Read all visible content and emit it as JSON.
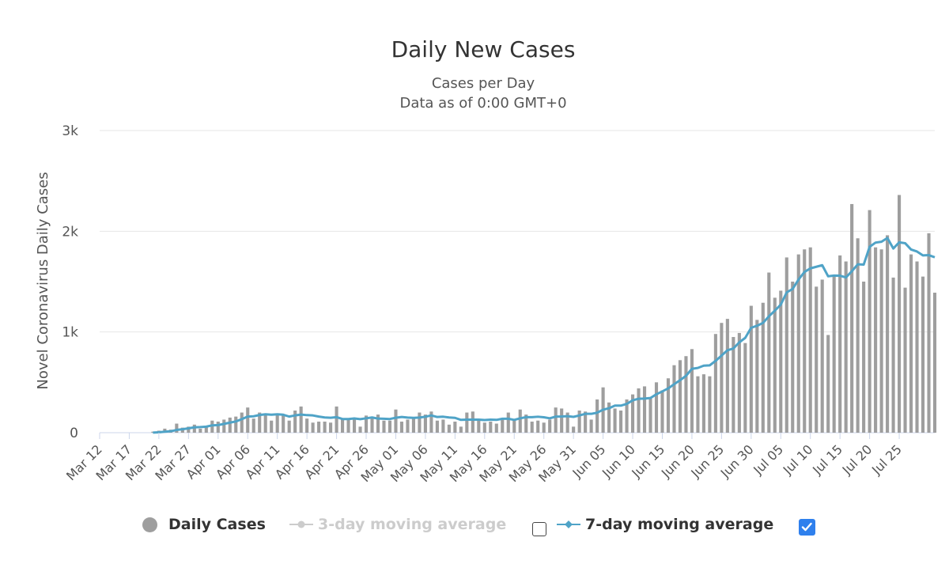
{
  "title": "Daily New Cases",
  "subtitle_line1": "Cases per Day",
  "subtitle_line2": "Data as of 0:00 GMT+0",
  "colors": {
    "bars": "#9e9e9e",
    "line7": "#4fa3c7",
    "line3_inactive": "#cccccc",
    "grid": "#e6e6e6",
    "checkbox_on": "#2f80ed"
  },
  "legend": {
    "daily_label": "Daily Cases",
    "avg3_label": "3-day moving average",
    "avg7_label": "7-day moving average",
    "avg3_checked": false,
    "avg7_checked": true
  },
  "chart_data": {
    "type": "bar",
    "ylabel": "Novel Coronavirus Daily Cases",
    "ylim": [
      0,
      3000
    ],
    "y_ticks": [
      "0",
      "1k",
      "2k",
      "3k"
    ],
    "y_tick_values": [
      0,
      1000,
      2000,
      3000
    ],
    "x_tick_labels": [
      "Mar 12",
      "Mar 17",
      "Mar 22",
      "Mar 27",
      "Apr 01",
      "Apr 06",
      "Apr 11",
      "Apr 16",
      "Apr 21",
      "Apr 26",
      "May 01",
      "May 06",
      "May 11",
      "May 16",
      "May 21",
      "May 26",
      "May 31",
      "Jun 05",
      "Jun 10",
      "Jun 15",
      "Jun 20",
      "Jun 25",
      "Jun 30",
      "Jul 05",
      "Jul 10",
      "Jul 15",
      "Jul 20",
      "Jul 25"
    ],
    "x_start": "Mar 12",
    "x_end": "Jul 25",
    "grid": true,
    "legend_position": "bottom",
    "series": [
      {
        "name": "Daily Cases",
        "type": "bar",
        "values": [
          0,
          0,
          0,
          0,
          0,
          0,
          0,
          0,
          0,
          10,
          20,
          40,
          30,
          90,
          50,
          60,
          80,
          40,
          70,
          120,
          110,
          130,
          150,
          160,
          200,
          250,
          140,
          200,
          180,
          120,
          190,
          170,
          120,
          220,
          260,
          140,
          100,
          110,
          110,
          100,
          260,
          130,
          140,
          140,
          60,
          170,
          160,
          180,
          120,
          120,
          230,
          110,
          130,
          140,
          200,
          180,
          210,
          120,
          130,
          80,
          110,
          60,
          200,
          210,
          120,
          100,
          110,
          90,
          140,
          200,
          130,
          230,
          180,
          110,
          120,
          100,
          130,
          250,
          240,
          200,
          60,
          220,
          210,
          130,
          330,
          450,
          300,
          240,
          220,
          330,
          380,
          440,
          460,
          340,
          500,
          420,
          540,
          670,
          720,
          760,
          830,
          560,
          580,
          560,
          980,
          1090,
          1130,
          950,
          990,
          890,
          1260,
          1120,
          1290,
          1590,
          1340,
          1410,
          1740,
          1500,
          1770,
          1820,
          1840,
          1450,
          1520,
          970,
          1550,
          1760,
          1700,
          2270,
          1930,
          1500,
          2210,
          1840,
          1820,
          1960,
          1540,
          2360,
          1440,
          1770,
          1700,
          1550,
          1980,
          1390
        ]
      },
      {
        "name": "7-day moving average",
        "type": "line",
        "values": [
          null,
          null,
          null,
          null,
          null,
          null,
          null,
          null,
          null,
          null,
          null,
          null,
          null,
          null,
          null,
          null,
          null,
          null,
          null,
          null,
          null,
          null,
          null,
          null,
          null,
          null,
          null,
          null,
          null,
          null,
          null,
          null,
          null,
          null,
          null,
          null,
          null,
          null,
          null,
          null,
          null,
          null,
          null,
          null,
          null,
          null,
          null,
          null,
          null,
          null,
          null,
          null,
          null,
          null,
          null,
          null,
          null,
          null,
          null,
          null,
          null,
          null,
          null,
          null,
          null,
          null,
          null,
          null,
          null,
          null,
          null,
          null,
          null,
          null,
          null,
          null,
          null,
          null,
          null,
          null,
          null,
          null,
          null,
          null,
          null,
          null,
          null,
          null,
          null,
          null,
          null,
          null,
          null,
          null,
          null,
          null,
          null,
          null,
          null,
          null,
          null,
          null,
          null,
          null,
          null,
          null,
          null,
          null,
          null,
          null,
          null,
          null,
          null,
          null,
          null,
          null,
          null,
          null,
          null,
          null,
          null,
          null,
          null,
          null,
          null,
          null,
          null,
          null,
          null,
          null,
          null,
          null,
          null,
          null,
          null,
          null,
          null,
          null,
          null,
          null,
          null,
          null
        ]
      }
    ]
  }
}
